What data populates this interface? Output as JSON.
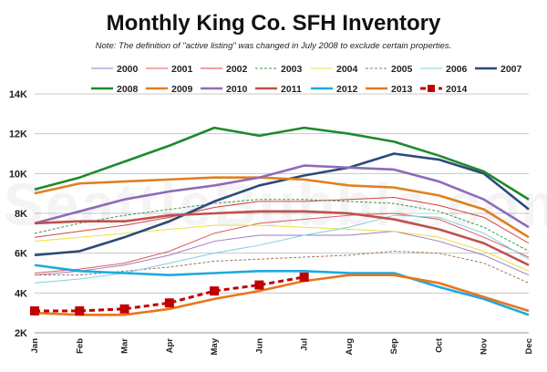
{
  "chart_data": {
    "type": "line",
    "title": "Monthly King Co. SFH Inventory",
    "subtitle": "Note: The definition of \"active listing\" was changed in July 2008 to exclude certain properties.",
    "watermark": "SeattleBubble.com",
    "categories": [
      "Jan",
      "Feb",
      "Mar",
      "Apr",
      "May",
      "Jun",
      "Jul",
      "Aug",
      "Sep",
      "Oct",
      "Nov",
      "Dec"
    ],
    "ylim": [
      2000,
      14000
    ],
    "yticks": [
      2000,
      4000,
      6000,
      8000,
      10000,
      12000,
      14000
    ],
    "ytick_labels": [
      "2K",
      "4K",
      "6K",
      "8K",
      "10K",
      "12K",
      "14K"
    ],
    "grid": true,
    "legend_position": "top",
    "series": [
      {
        "name": "2000",
        "color": "#9b7ec0",
        "style": "thin",
        "values": [
          4900,
          5100,
          5400,
          5900,
          6600,
          6900,
          6900,
          6900,
          7100,
          6600,
          5900,
          4900
        ]
      },
      {
        "name": "2001",
        "color": "#e05a5a",
        "style": "thin",
        "values": [
          5000,
          5200,
          5500,
          6100,
          7000,
          7500,
          7700,
          7900,
          8000,
          7700,
          6800,
          5800
        ]
      },
      {
        "name": "2002",
        "color": "#d94040",
        "style": "thin",
        "values": [
          6800,
          7100,
          7400,
          7800,
          8300,
          8600,
          8600,
          8700,
          8800,
          8400,
          7800,
          6500
        ]
      },
      {
        "name": "2003",
        "color": "#3a9a4a",
        "style": "dashed",
        "values": [
          7000,
          7500,
          7900,
          8200,
          8500,
          8700,
          8700,
          8600,
          8500,
          8100,
          7300,
          6100
        ]
      },
      {
        "name": "2004",
        "color": "#e8e040",
        "style": "thin",
        "values": [
          6600,
          6800,
          7000,
          7200,
          7400,
          7400,
          7300,
          7200,
          7100,
          6800,
          6100,
          5100
        ]
      },
      {
        "name": "2005",
        "color": "#a07858",
        "style": "dashed",
        "values": [
          4900,
          4900,
          5100,
          5300,
          5600,
          5700,
          5800,
          5900,
          6100,
          6000,
          5500,
          4500
        ]
      },
      {
        "name": "2006",
        "color": "#7fd0e0",
        "style": "thin",
        "values": [
          4500,
          4700,
          5000,
          5500,
          6000,
          6400,
          6900,
          7300,
          7900,
          7800,
          7000,
          5700
        ]
      },
      {
        "name": "2007",
        "color": "#2c4a7a",
        "style": "thick",
        "values": [
          5900,
          6100,
          6800,
          7600,
          8600,
          9400,
          9900,
          10300,
          11000,
          10700,
          10000,
          8200
        ]
      },
      {
        "name": "2008",
        "color": "#1e8a2c",
        "style": "thick",
        "values": [
          9200,
          9800,
          10600,
          11400,
          12300,
          11900,
          12300,
          12000,
          11600,
          10900,
          10100,
          8700
        ]
      },
      {
        "name": "2009",
        "color": "#e0801e",
        "style": "thick",
        "values": [
          9000,
          9500,
          9600,
          9700,
          9800,
          9800,
          9700,
          9400,
          9300,
          8900,
          8200,
          6800
        ]
      },
      {
        "name": "2010",
        "color": "#8e6cb8",
        "style": "thick",
        "values": [
          7500,
          8100,
          8700,
          9100,
          9400,
          9800,
          10400,
          10300,
          10200,
          9600,
          8700,
          7300
        ]
      },
      {
        "name": "2011",
        "color": "#c0504d",
        "style": "thick",
        "values": [
          7500,
          7600,
          7600,
          7900,
          8000,
          8100,
          8100,
          8000,
          7700,
          7200,
          6500,
          5400
        ]
      },
      {
        "name": "2012",
        "color": "#1eaae0",
        "style": "thick",
        "values": [
          5400,
          5100,
          5000,
          4900,
          5000,
          5100,
          5100,
          5000,
          5000,
          4300,
          3700,
          2900
        ]
      },
      {
        "name": "2013",
        "color": "#e8761e",
        "style": "thick",
        "values": [
          3000,
          2900,
          2900,
          3200,
          3700,
          4100,
          4600,
          4900,
          4900,
          4500,
          3800,
          3100
        ]
      },
      {
        "name": "2014",
        "color": "#c00000",
        "style": "marker",
        "values": [
          3100,
          3100,
          3200,
          3500,
          4100,
          4400,
          4800,
          null,
          null,
          null,
          null,
          null
        ]
      }
    ]
  }
}
